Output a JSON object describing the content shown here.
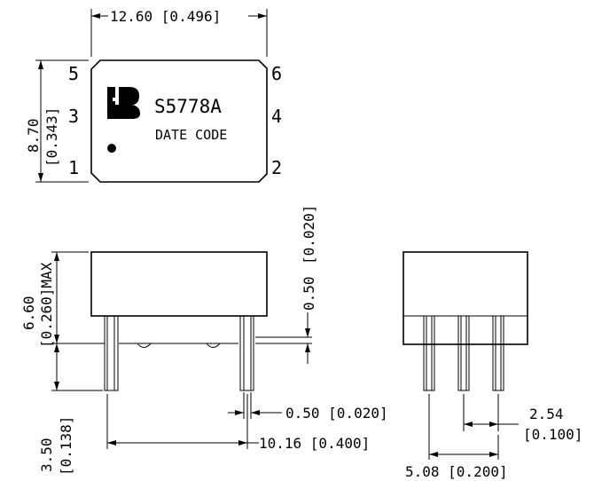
{
  "top_view": {
    "part_number": "S5778A",
    "date_code": "DATE CODE",
    "pins": {
      "p5": "5",
      "p3": "3",
      "p1": "1",
      "p6": "6",
      "p4": "4",
      "p2": "2"
    },
    "width_dim": "12.60 [0.496]",
    "height_dim_mm": "8.70",
    "height_dim_in": "[0.343]"
  },
  "side_view": {
    "body_height_mm": "6.60",
    "body_height_in": "[0.260]MAX",
    "pin_length_mm": "3.50",
    "pin_length_in": "[0.138]",
    "standoff_mm": "0.50",
    "standoff_in": "[0.020]",
    "pin_width": "0.50 [0.020]",
    "pin_span": "10.16 [0.400]"
  },
  "end_view": {
    "pitch_mm": "2.54",
    "pitch_in": "[0.100]",
    "span": "5.08 [0.200]"
  }
}
